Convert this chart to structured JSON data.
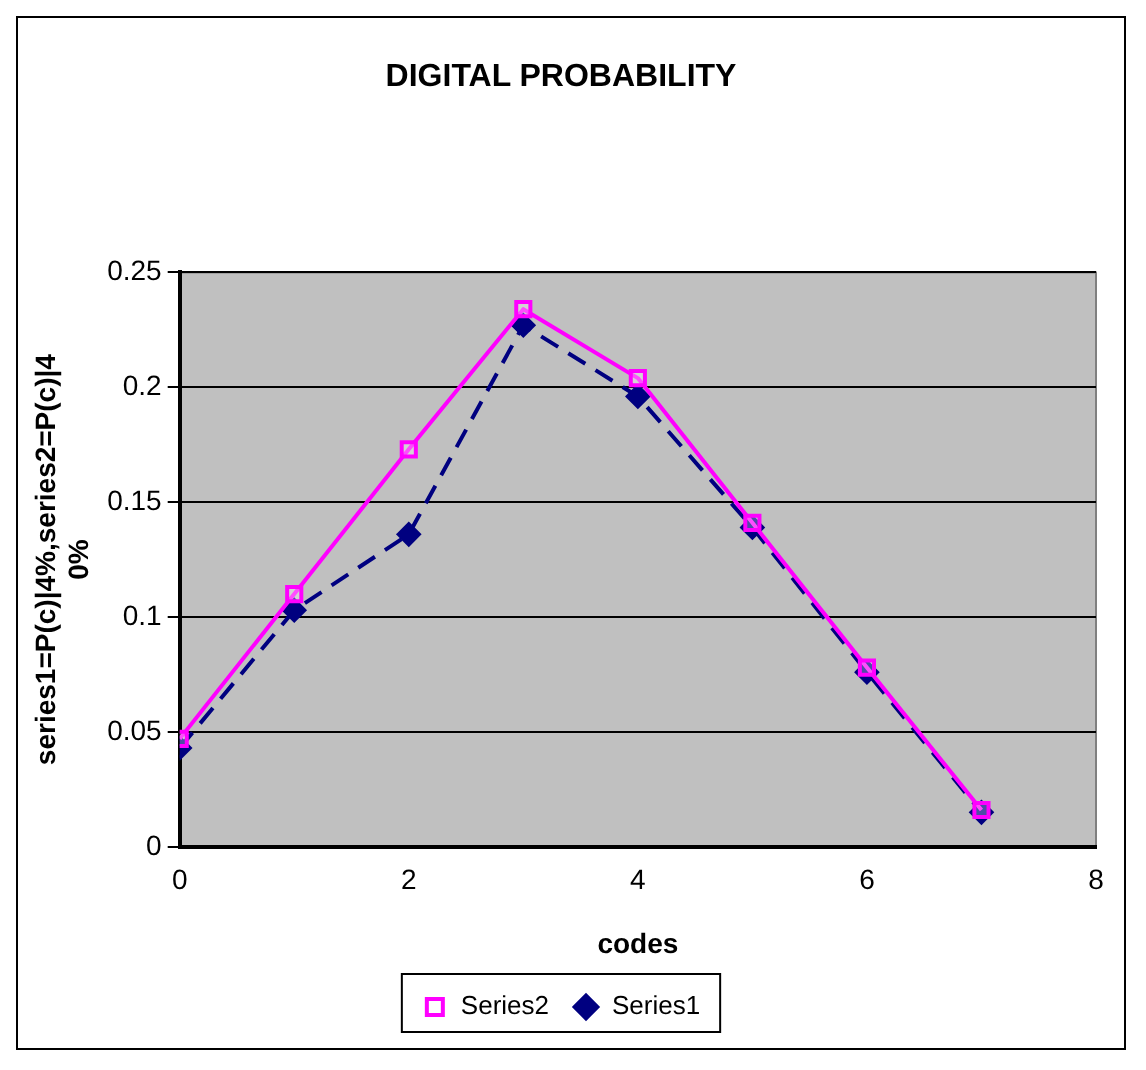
{
  "chart_data": {
    "type": "line",
    "title": "DIGITAL PROBABILITY",
    "xlabel": "codes",
    "ylabel": "series1=P(c)|4%,series2=P(c)|40%",
    "x": [
      0,
      1,
      2,
      3,
      4,
      5,
      6,
      7
    ],
    "series": [
      {
        "name": "Series1",
        "color": "#000080",
        "marker": "diamond",
        "line_style": "dashed",
        "values": [
          0.043,
          0.103,
          0.136,
          0.227,
          0.196,
          0.139,
          0.076,
          0.015
        ]
      },
      {
        "name": "Series2",
        "color": "#ff00ff",
        "marker": "square",
        "line_style": "solid",
        "values": [
          0.047,
          0.11,
          0.173,
          0.234,
          0.204,
          0.141,
          0.078,
          0.016
        ]
      }
    ],
    "xlim": [
      0,
      8
    ],
    "xticks": [
      0,
      2,
      4,
      6,
      8
    ],
    "ylim": [
      0,
      0.25
    ],
    "yticks": [
      0,
      0.05,
      0.1,
      0.15,
      0.2,
      0.25
    ],
    "grid": "y",
    "legend": "bottom"
  }
}
